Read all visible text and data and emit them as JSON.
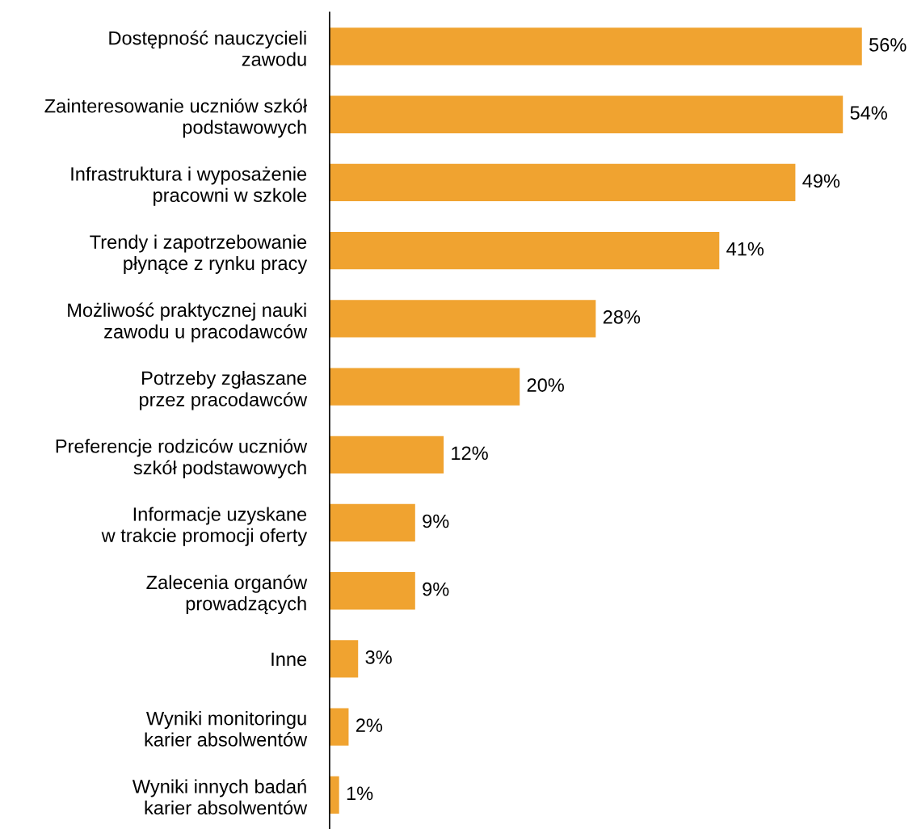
{
  "chart_data": {
    "type": "bar",
    "orientation": "horizontal",
    "categories": [
      "Dostępność nauczycieli\nzawodu",
      "Zainteresowanie uczniów szkół\npodstawowych",
      "Infrastruktura i wyposażenie\npracowni w szkole",
      "Trendy i zapotrzebowanie\npłynące z rynku pracy",
      "Możliwość praktycznej nauki\nzawodu u pracodawców",
      "Potrzeby zgłaszane\nprzez pracodawców",
      "Preferencje rodziców uczniów\nszkół podstawowych",
      "Informacje uzyskane\nw trakcie promocji oferty",
      "Zalecenia organów\nprowadzących",
      "Inne",
      "Wyniki monitoringu\nkarier absolwentów",
      "Wyniki innych badań\nkarier absolwentów"
    ],
    "values": [
      56,
      54,
      49,
      41,
      28,
      20,
      12,
      9,
      9,
      3,
      2,
      1
    ],
    "value_labels": [
      "56%",
      "54%",
      "49%",
      "41%",
      "28%",
      "20%",
      "12%",
      "9%",
      "9%",
      "3%",
      "2%",
      "1%"
    ],
    "color": "#f0a330",
    "grid": false,
    "legend": false
  }
}
